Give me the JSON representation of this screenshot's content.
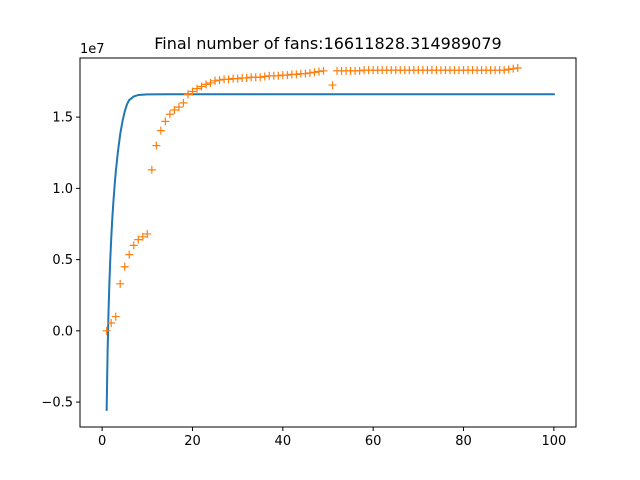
{
  "chart_data": {
    "type": "line",
    "title": "Final number of fans:16611828.314989079",
    "xlabel": "",
    "ylabel": "",
    "y_offset_label": "1e7",
    "xlim": [
      -4.9,
      104.9
    ],
    "ylim": [
      -6.75,
      19.15
    ],
    "y_scale_factor": 10000000,
    "x_ticks": [
      0,
      20,
      40,
      60,
      80,
      100
    ],
    "x_tick_labels": [
      "0",
      "20",
      "40",
      "60",
      "80",
      "100"
    ],
    "y_ticks": [
      -0.5,
      0.0,
      0.5,
      1.0,
      1.5
    ],
    "y_tick_labels": [
      "−0.5",
      "0.0",
      "0.5",
      "1.0",
      "1.5"
    ],
    "grid": false,
    "series": [
      {
        "kind": "line",
        "color": "#1f77b4",
        "x": [
          1,
          1.2,
          1.4,
          1.6,
          1.8,
          2,
          2.25,
          2.5,
          2.75,
          3,
          3.5,
          4,
          4.5,
          5,
          5.5,
          6,
          7,
          8,
          10,
          15,
          20,
          40,
          60,
          80,
          100
        ],
        "y": [
          -5.55,
          -1.6,
          1.2,
          3.3,
          5.0,
          6.4,
          7.9,
          9.1,
          10.15,
          11.1,
          12.6,
          13.8,
          14.7,
          15.4,
          15.9,
          16.2,
          16.45,
          16.55,
          16.6,
          16.61,
          16.61,
          16.61,
          16.61,
          16.61,
          16.61
        ]
      },
      {
        "kind": "scatter",
        "marker": "+",
        "color": "#ff7f0e",
        "x": [
          1,
          2,
          3,
          4,
          5,
          6,
          7,
          8,
          9,
          10,
          11,
          12,
          13,
          14,
          15,
          16,
          17,
          18,
          19,
          20,
          21,
          22,
          23,
          24,
          25,
          26,
          27,
          28,
          29,
          30,
          31,
          32,
          33,
          34,
          35,
          36,
          37,
          38,
          39,
          40,
          41,
          42,
          43,
          44,
          45,
          46,
          47,
          48,
          49,
          51,
          52,
          53,
          54,
          55,
          56,
          57,
          58,
          59,
          60,
          61,
          62,
          63,
          64,
          65,
          66,
          67,
          68,
          69,
          70,
          71,
          72,
          73,
          74,
          75,
          76,
          77,
          78,
          79,
          80,
          81,
          82,
          83,
          84,
          85,
          86,
          87,
          88,
          89,
          90,
          91,
          92
        ],
        "y": [
          0.0,
          0.55,
          1.0,
          3.3,
          4.5,
          5.35,
          6.0,
          6.4,
          6.6,
          6.8,
          11.3,
          13.0,
          14.05,
          14.7,
          15.2,
          15.5,
          15.7,
          16.0,
          16.6,
          16.8,
          17.0,
          17.15,
          17.3,
          17.4,
          17.55,
          17.6,
          17.65,
          17.65,
          17.7,
          17.7,
          17.75,
          17.75,
          17.8,
          17.8,
          17.8,
          17.85,
          17.9,
          17.9,
          17.9,
          17.95,
          17.95,
          18.0,
          18.0,
          18.05,
          18.05,
          18.1,
          18.15,
          18.2,
          18.25,
          17.25,
          18.25,
          18.25,
          18.25,
          18.25,
          18.25,
          18.25,
          18.3,
          18.3,
          18.3,
          18.3,
          18.3,
          18.3,
          18.3,
          18.3,
          18.3,
          18.3,
          18.3,
          18.3,
          18.3,
          18.3,
          18.3,
          18.3,
          18.3,
          18.3,
          18.3,
          18.3,
          18.3,
          18.3,
          18.3,
          18.3,
          18.3,
          18.3,
          18.3,
          18.3,
          18.3,
          18.3,
          18.3,
          18.3,
          18.35,
          18.4,
          18.45
        ]
      }
    ]
  }
}
